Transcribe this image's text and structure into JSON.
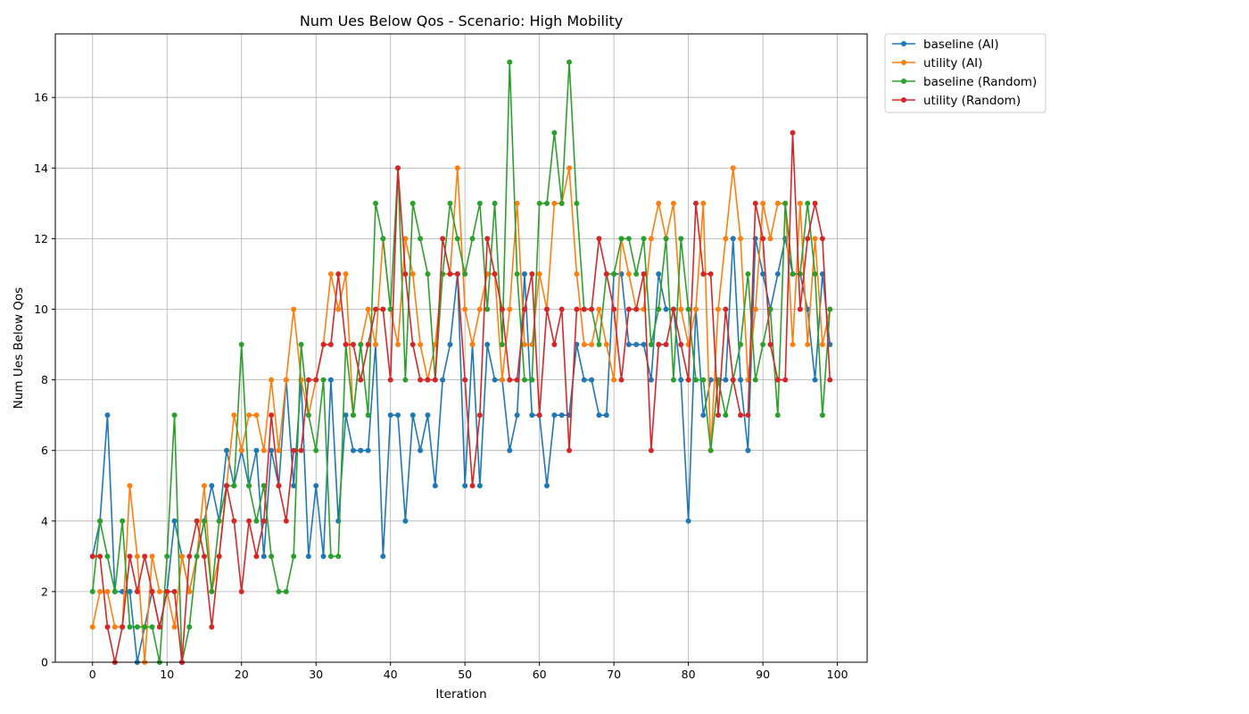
{
  "chart_data": {
    "type": "line",
    "title": "Num Ues Below Qos - Scenario: High Mobility",
    "xlabel": "Iteration",
    "ylabel": "Num Ues Below Qos",
    "xlim": [
      -5,
      104
    ],
    "ylim": [
      0,
      17.8
    ],
    "xticks": [
      0,
      10,
      20,
      30,
      40,
      50,
      60,
      70,
      80,
      90,
      100
    ],
    "yticks": [
      0,
      2,
      4,
      6,
      8,
      10,
      12,
      14,
      16
    ],
    "grid": true,
    "marker": "circle",
    "legend_position": "outside upper-right",
    "series": [
      {
        "name": "baseline (AI)",
        "color": "#1f77b4",
        "values": [
          3,
          4,
          7,
          2,
          2,
          2,
          0,
          1,
          2,
          1,
          2,
          4,
          3,
          2,
          3,
          4,
          5,
          4,
          6,
          5,
          6,
          5,
          6,
          3,
          6,
          5,
          8,
          5,
          8,
          3,
          5,
          3,
          8,
          4,
          7,
          6,
          6,
          6,
          9,
          3,
          7,
          7,
          4,
          7,
          6,
          7,
          5,
          8,
          9,
          11,
          5,
          9,
          5,
          9,
          8,
          8,
          6,
          7,
          11,
          7,
          7,
          5,
          7,
          7,
          7,
          9,
          8,
          8,
          7,
          7,
          11,
          11,
          9,
          9,
          9,
          8,
          11,
          10,
          10,
          8,
          4,
          10,
          7,
          8,
          8,
          8,
          12,
          8,
          6,
          12,
          11,
          10,
          11,
          12,
          11,
          11,
          10,
          8,
          11,
          9
        ]
      },
      {
        "name": "utility (AI)",
        "color": "#ff7f0e",
        "values": [
          1,
          2,
          2,
          1,
          1,
          5,
          3,
          0,
          3,
          2,
          2,
          1,
          3,
          2,
          3,
          5,
          2,
          3,
          5,
          7,
          6,
          7,
          7,
          6,
          8,
          6,
          8,
          10,
          8,
          7,
          8,
          9,
          11,
          10,
          11,
          7,
          9,
          10,
          9,
          12,
          10,
          9,
          12,
          11,
          9,
          8,
          9,
          11,
          11,
          14,
          10,
          9,
          10,
          11,
          11,
          8,
          10,
          13,
          9,
          9,
          11,
          10,
          13,
          13,
          14,
          11,
          9,
          9,
          10,
          9,
          8,
          12,
          11,
          10,
          10,
          12,
          13,
          12,
          13,
          10,
          9,
          10,
          13,
          6,
          10,
          12,
          14,
          12,
          8,
          10,
          13,
          12,
          13,
          13,
          9,
          13,
          9,
          12,
          9,
          10
        ]
      },
      {
        "name": "baseline (Random)",
        "color": "#2ca02c",
        "values": [
          2,
          4,
          3,
          2,
          4,
          1,
          1,
          1,
          1,
          0,
          3,
          7,
          0,
          1,
          3,
          4,
          2,
          4,
          5,
          5,
          9,
          5,
          4,
          5,
          3,
          2,
          2,
          3,
          9,
          7,
          6,
          8,
          3,
          3,
          9,
          7,
          9,
          7,
          13,
          12,
          10,
          14,
          8,
          13,
          12,
          11,
          8,
          11,
          13,
          12,
          11,
          12,
          13,
          10,
          13,
          9,
          17,
          11,
          8,
          8,
          13,
          13,
          15,
          13,
          17,
          13,
          10,
          10,
          9,
          11,
          11,
          12,
          12,
          11,
          12,
          9,
          10,
          12,
          8,
          12,
          10,
          8,
          8,
          6,
          8,
          7,
          8,
          9,
          11,
          8,
          9,
          10,
          7,
          13,
          11,
          11,
          13,
          11,
          7,
          10
        ]
      },
      {
        "name": "utility (Random)",
        "color": "#d62728",
        "values": [
          3,
          3,
          1,
          0,
          1,
          3,
          2,
          3,
          2,
          1,
          2,
          2,
          0,
          3,
          4,
          3,
          1,
          3,
          5,
          4,
          2,
          4,
          3,
          4,
          7,
          5,
          4,
          6,
          6,
          8,
          8,
          9,
          9,
          11,
          9,
          9,
          8,
          9,
          10,
          10,
          8,
          14,
          11,
          9,
          8,
          8,
          8,
          12,
          11,
          11,
          8,
          5,
          7,
          12,
          11,
          10,
          8,
          8,
          10,
          11,
          7,
          10,
          9,
          10,
          6,
          10,
          10,
          10,
          12,
          11,
          10,
          8,
          10,
          10,
          11,
          6,
          9,
          9,
          10,
          9,
          8,
          13,
          11,
          11,
          7,
          10,
          8,
          7,
          7,
          13,
          12,
          9,
          8,
          8,
          15,
          10,
          12,
          13,
          12,
          8
        ]
      }
    ]
  }
}
